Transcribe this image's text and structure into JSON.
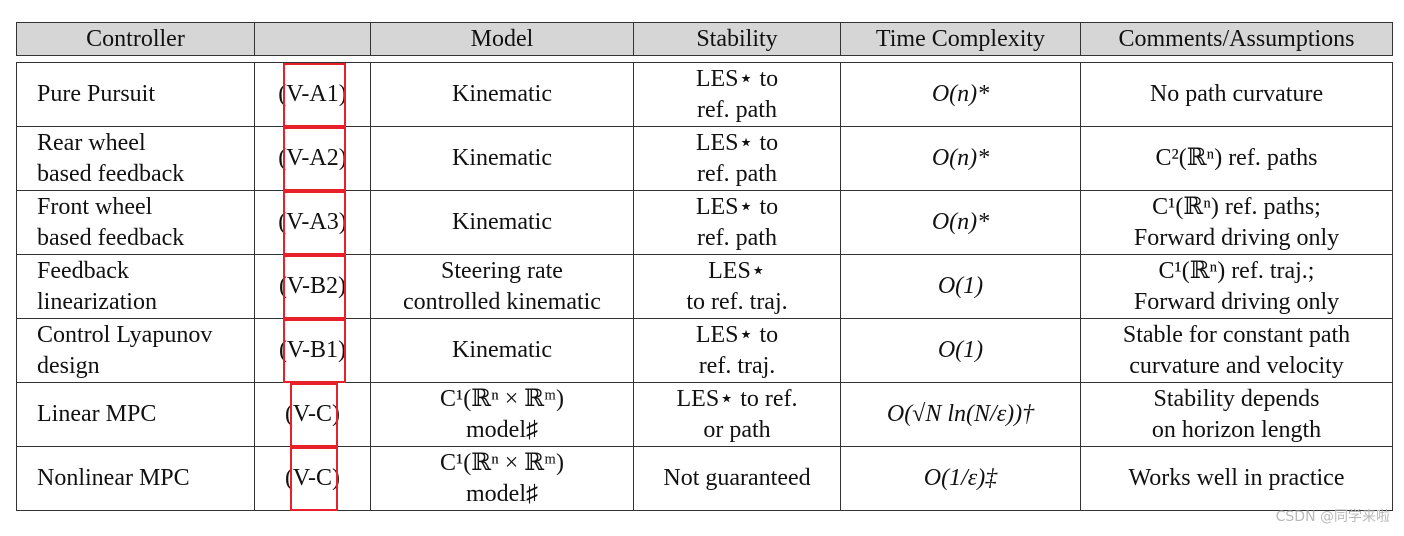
{
  "header": {
    "controller": "Controller",
    "ref": "",
    "model": "Model",
    "stability": "Stability",
    "time": "Time Complexity",
    "comments": "Comments/Assumptions"
  },
  "rows": [
    {
      "controller": [
        "Pure Pursuit"
      ],
      "ref": "(V-A1)",
      "model": [
        "Kinematic"
      ],
      "stability": [
        "LES⋆ to",
        "ref. path"
      ],
      "time": [
        "O(n)*"
      ],
      "comments": [
        "No path curvature"
      ]
    },
    {
      "controller": [
        "Rear wheel",
        "based feedback"
      ],
      "ref": "(V-A2)",
      "model": [
        "Kinematic"
      ],
      "stability": [
        "LES⋆ to",
        "ref. path"
      ],
      "time": [
        "O(n)*"
      ],
      "comments": [
        "C²(ℝⁿ) ref. paths"
      ]
    },
    {
      "controller": [
        "Front wheel",
        "based feedback"
      ],
      "ref": "(V-A3)",
      "model": [
        "Kinematic"
      ],
      "stability": [
        "LES⋆ to",
        "ref. path"
      ],
      "time": [
        "O(n)*"
      ],
      "comments": [
        "C¹(ℝⁿ) ref. paths;",
        "Forward driving only"
      ]
    },
    {
      "controller": [
        "Feedback",
        "linearization"
      ],
      "ref": "(V-B2)",
      "model": [
        "Steering rate",
        "controlled kinematic"
      ],
      "stability": [
        "LES⋆",
        "to ref. traj."
      ],
      "time": [
        "O(1)"
      ],
      "comments": [
        "C¹(ℝⁿ) ref. traj.;",
        "Forward driving only"
      ]
    },
    {
      "controller": [
        "Control Lyapunov",
        "design"
      ],
      "ref": "(V-B1)",
      "model": [
        "Kinematic"
      ],
      "stability": [
        "LES⋆ to",
        "ref. traj."
      ],
      "time": [
        "O(1)"
      ],
      "comments": [
        "Stable for constant path",
        "curvature and velocity"
      ]
    },
    {
      "controller": [
        "Linear MPC"
      ],
      "ref": "(V-C)",
      "model": [
        "C¹(ℝⁿ × ℝᵐ)",
        "model♯"
      ],
      "stability": [
        "LES⋆ to ref.",
        "or path"
      ],
      "time": [
        "O(√N ln(N/ε))†"
      ],
      "comments": [
        "Stability depends",
        "on horizon length"
      ]
    },
    {
      "controller": [
        "Nonlinear MPC"
      ],
      "ref": "(V-C)",
      "model": [
        "C¹(ℝⁿ × ℝᵐ)",
        "model♯"
      ],
      "stability": [
        "Not guaranteed"
      ],
      "time": [
        "O(1/ε)‡"
      ],
      "comments": [
        "Works well in practice"
      ]
    }
  ],
  "watermark": "CSDN @同学来啦",
  "colors": {
    "header_bg": "#d6d6d6",
    "highlight_box": "#e8202a",
    "border": "#333333"
  }
}
